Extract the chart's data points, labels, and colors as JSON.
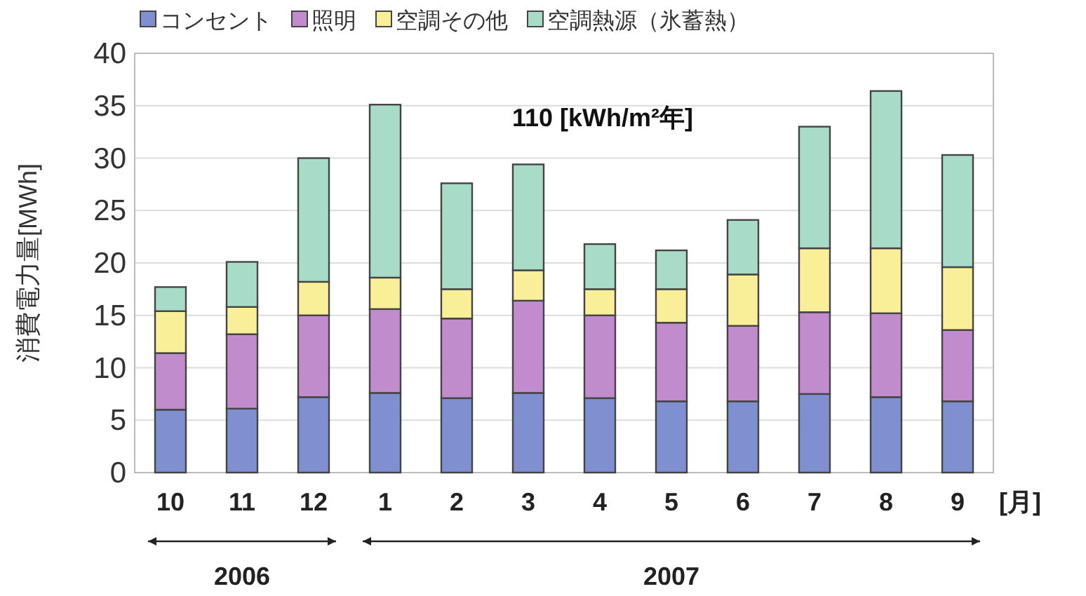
{
  "chart_data": {
    "type": "bar",
    "stacked": true,
    "ylabel": "消費電力量[MWh]",
    "xlabel": "[月]",
    "categories": [
      "10",
      "11",
      "12",
      "1",
      "2",
      "3",
      "4",
      "5",
      "6",
      "7",
      "8",
      "9"
    ],
    "ylim": [
      0,
      40
    ],
    "yticks": [
      0,
      5,
      10,
      15,
      20,
      25,
      30,
      35,
      40
    ],
    "grid": "y",
    "legend": "top",
    "series": [
      {
        "name": "コンセント",
        "color": "#7f8fcf",
        "values": [
          6.0,
          6.1,
          7.2,
          7.6,
          7.1,
          7.6,
          7.1,
          6.8,
          6.8,
          7.5,
          7.2,
          6.8
        ]
      },
      {
        "name": "照明",
        "color": "#c08ccc",
        "values": [
          5.4,
          7.1,
          7.8,
          8.0,
          7.6,
          8.8,
          7.9,
          7.5,
          7.2,
          7.8,
          8.0,
          6.8
        ]
      },
      {
        "name": "空調その他",
        "color": "#f8ef98",
        "values": [
          4.0,
          2.6,
          3.2,
          3.0,
          2.8,
          2.9,
          2.5,
          3.2,
          4.9,
          6.1,
          6.2,
          6.0
        ]
      },
      {
        "name": "空調熱源（氷蓄熱）",
        "color": "#a8dcc8",
        "values": [
          2.3,
          4.3,
          11.8,
          16.5,
          10.1,
          10.1,
          4.3,
          3.7,
          5.2,
          11.6,
          15.0,
          10.7
        ]
      }
    ],
    "annotations": [
      "110 [kWh/m²年]",
      "2006",
      "2007"
    ]
  }
}
